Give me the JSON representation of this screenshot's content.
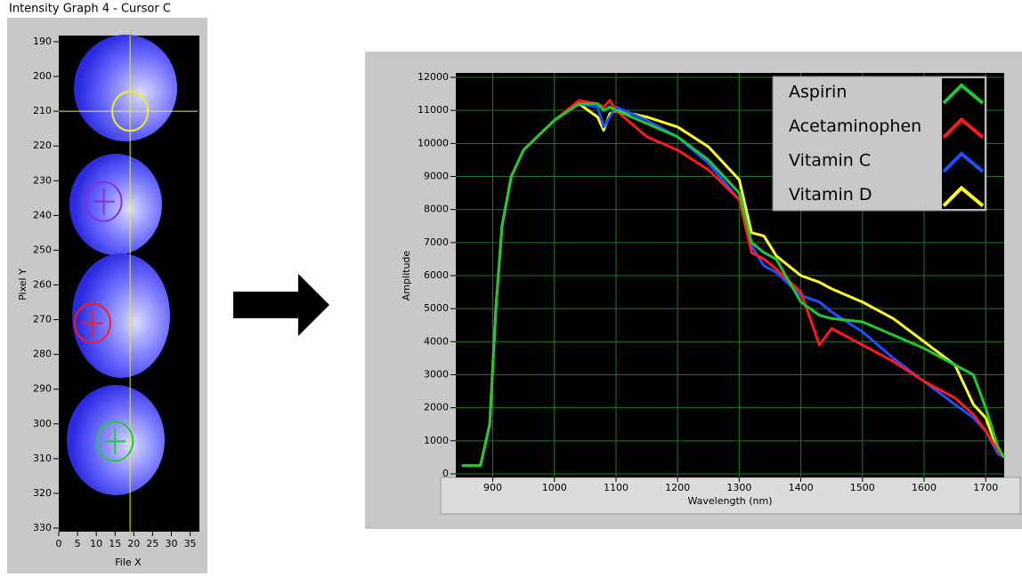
{
  "chart_data": [
    {
      "type": "intensity",
      "title": "Intensity Graph 4 - Cursor C",
      "x_label": "File X",
      "y_label": "Pixel Y",
      "xlim": [
        0,
        37
      ],
      "xticks": [
        0,
        5,
        10,
        15,
        20,
        25,
        30,
        35
      ],
      "ylim": [
        330,
        190
      ],
      "yticks": [
        190,
        200,
        210,
        220,
        230,
        240,
        250,
        260,
        270,
        280,
        290,
        300,
        310,
        320,
        330
      ],
      "cursors": [
        {
          "color": "#f0f020",
          "x": 19,
          "y": 210,
          "crosshair": true
        },
        {
          "color": "#8a2be2",
          "x": 12,
          "y": 236,
          "crosshair": false
        },
        {
          "color": "#ff1a1a",
          "x": 9,
          "y": 271,
          "crosshair": false
        },
        {
          "color": "#22cc33",
          "x": 15,
          "y": 305,
          "crosshair": false
        }
      ]
    },
    {
      "type": "line",
      "x_label": "Wavelength (nm)",
      "y_label": "Amplitude",
      "xlim": [
        840,
        1730
      ],
      "xticks": [
        900,
        1000,
        1100,
        1200,
        1300,
        1400,
        1500,
        1600,
        1700
      ],
      "ylim": [
        0,
        12000
      ],
      "yticks": [
        0,
        1000,
        2000,
        3000,
        4000,
        5000,
        6000,
        7000,
        8000,
        9000,
        10000,
        11000,
        12000
      ],
      "grid": true,
      "legend": "top-right",
      "x": [
        850,
        880,
        895,
        905,
        915,
        930,
        950,
        1000,
        1040,
        1070,
        1080,
        1090,
        1100,
        1150,
        1200,
        1250,
        1300,
        1320,
        1340,
        1360,
        1400,
        1430,
        1450,
        1500,
        1550,
        1600,
        1650,
        1680,
        1700,
        1720,
        1730
      ],
      "series": [
        {
          "name": "Aspirin",
          "color": "#22c832",
          "values": [
            250,
            250,
            1500,
            5000,
            7500,
            9000,
            9800,
            10700,
            11200,
            11200,
            11000,
            11100,
            11000,
            10600,
            10200,
            9500,
            8500,
            7000,
            6700,
            6500,
            5200,
            4800,
            4700,
            4600,
            4200,
            3800,
            3300,
            3000,
            2000,
            800,
            500
          ]
        },
        {
          "name": "Acetaminophen",
          "color": "#ff1a1a",
          "values": [
            250,
            250,
            1500,
            5000,
            7500,
            9000,
            9800,
            10700,
            11300,
            11200,
            11100,
            11300,
            11000,
            10200,
            9800,
            9200,
            8300,
            6700,
            6500,
            6200,
            5500,
            3900,
            4400,
            3900,
            3400,
            2800,
            2300,
            1800,
            1300,
            700,
            500
          ]
        },
        {
          "name": "Vitamin C",
          "color": "#1e50ff",
          "values": [
            250,
            250,
            1500,
            5000,
            7500,
            9000,
            9800,
            10700,
            11200,
            11100,
            10500,
            10800,
            11100,
            10700,
            10200,
            9400,
            8300,
            6900,
            6300,
            6100,
            5400,
            5200,
            4900,
            4300,
            3500,
            2800,
            2100,
            1700,
            1300,
            600,
            500
          ]
        },
        {
          "name": "Vitamin D",
          "color": "#ffff28",
          "values": [
            250,
            250,
            1500,
            5000,
            7500,
            9000,
            9800,
            10700,
            11200,
            10800,
            10400,
            10900,
            11000,
            10800,
            10500,
            9900,
            8900,
            7300,
            7200,
            6600,
            6000,
            5800,
            5600,
            5200,
            4700,
            4000,
            3300,
            2100,
            1700,
            700,
            500
          ]
        }
      ]
    }
  ]
}
